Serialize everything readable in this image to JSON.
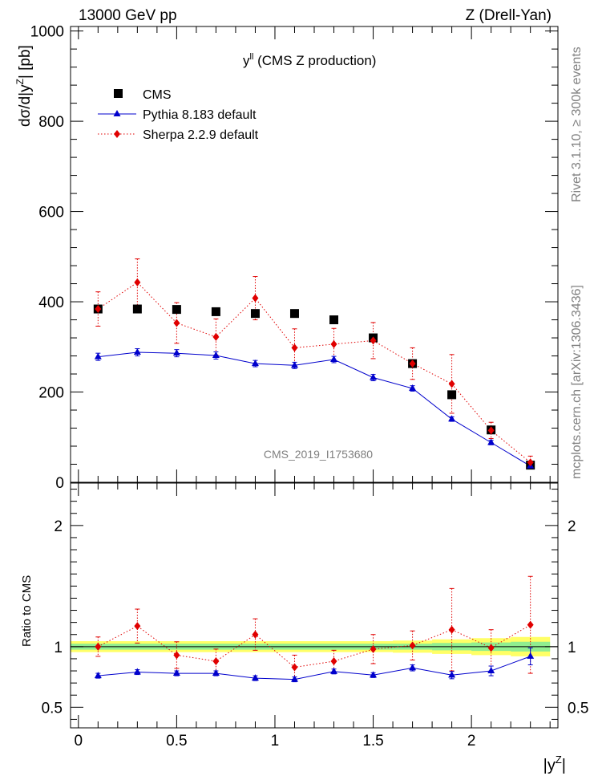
{
  "header": {
    "left": "13000 GeV pp",
    "right": "Z (Drell-Yan)"
  },
  "side_text": {
    "rivet": "Rivet 3.1.10, ≥ 300k events",
    "source": "mcplots.cern.ch [arXiv:1306.3436]"
  },
  "watermark": "CMS_2019_I1753680",
  "colors": {
    "cms": "#000000",
    "pythia": "#0000cc",
    "sherpa": "#e00000",
    "band_inner": "#90ee90",
    "band_outer": "#ffff66"
  },
  "chart_data": [
    {
      "type": "scatter",
      "title": "y^ll (CMS Z production)",
      "title_main": "y",
      "title_sup": "ll",
      "title_rest": " (CMS Z production)",
      "ylabel": "dσ/d|y^Z| [pb]",
      "ylabel_main": "dσ/d|y",
      "ylabel_sup": "Z",
      "ylabel_rest": "| [pb]",
      "ylim": [
        0,
        1010
      ],
      "xlim": [
        -0.04,
        2.44
      ],
      "yticks": [
        0,
        200,
        400,
        600,
        800,
        1000
      ],
      "ytick_labels": [
        "0",
        "200",
        "400",
        "600",
        "800",
        "1000"
      ],
      "x": [
        0.1,
        0.3,
        0.5,
        0.7,
        0.9,
        1.1,
        1.3,
        1.5,
        1.7,
        1.9,
        2.1,
        2.3
      ],
      "series": [
        {
          "name": "CMS",
          "marker": "square",
          "values": [
            384,
            384,
            383,
            378,
            374,
            374,
            360,
            320,
            263,
            194,
            116,
            38
          ]
        },
        {
          "name": "Pythia 8.183 default",
          "marker": "triangle",
          "values": [
            278,
            288,
            286,
            281,
            263,
            259,
            272,
            232,
            208,
            140,
            88,
            36
          ],
          "errors": [
            8,
            8,
            8,
            8,
            7,
            7,
            7,
            7,
            6,
            5,
            5,
            4
          ]
        },
        {
          "name": "Sherpa 2.2.9 default",
          "marker": "diamond",
          "values": [
            384,
            443,
            353,
            322,
            408,
            298,
            306,
            314,
            263,
            218,
            115,
            44
          ],
          "errors": [
            38,
            52,
            45,
            40,
            48,
            42,
            35,
            40,
            35,
            65,
            18,
            14
          ]
        }
      ],
      "legend_position": "top-left"
    },
    {
      "type": "scatter",
      "title": "",
      "xlabel": "|y^Z|",
      "xlabel_main": "|y",
      "xlabel_sup": "Z",
      "xlabel_rest": "|",
      "ylabel": "Ratio to CMS",
      "ylim": [
        0.33,
        2.35
      ],
      "xlim": [
        -0.04,
        2.44
      ],
      "yticks": [
        0.5,
        1,
        2
      ],
      "ytick_labels": [
        "0.5",
        "1",
        "2"
      ],
      "xticks": [
        0,
        0.5,
        1,
        1.5,
        2
      ],
      "xtick_labels": [
        "0",
        "0.5",
        "1",
        "1.5",
        "2"
      ],
      "x": [
        0.1,
        0.3,
        0.5,
        0.7,
        0.9,
        1.1,
        1.3,
        1.5,
        1.7,
        1.9,
        2.1,
        2.3
      ],
      "band_inner_halfwidth": [
        0.025,
        0.025,
        0.025,
        0.025,
        0.025,
        0.025,
        0.025,
        0.025,
        0.025,
        0.03,
        0.035,
        0.04
      ],
      "band_outer_halfwidth": [
        0.045,
        0.045,
        0.045,
        0.045,
        0.045,
        0.045,
        0.045,
        0.045,
        0.05,
        0.06,
        0.07,
        0.08
      ],
      "series": [
        {
          "name": "Pythia 8.183 default",
          "values": [
            0.76,
            0.79,
            0.78,
            0.78,
            0.74,
            0.73,
            0.795,
            0.765,
            0.825,
            0.765,
            0.8,
            0.92
          ],
          "errors": [
            0.02,
            0.02,
            0.02,
            0.02,
            0.02,
            0.02,
            0.02,
            0.02,
            0.025,
            0.03,
            0.04,
            0.07
          ]
        },
        {
          "name": "Sherpa 2.2.9 default",
          "values": [
            1.0,
            1.17,
            0.93,
            0.88,
            1.1,
            0.83,
            0.88,
            0.98,
            1.01,
            1.14,
            0.99,
            1.18
          ],
          "errors": [
            0.08,
            0.14,
            0.11,
            0.1,
            0.13,
            0.1,
            0.09,
            0.12,
            0.12,
            0.34,
            0.15,
            0.4
          ]
        }
      ]
    }
  ]
}
